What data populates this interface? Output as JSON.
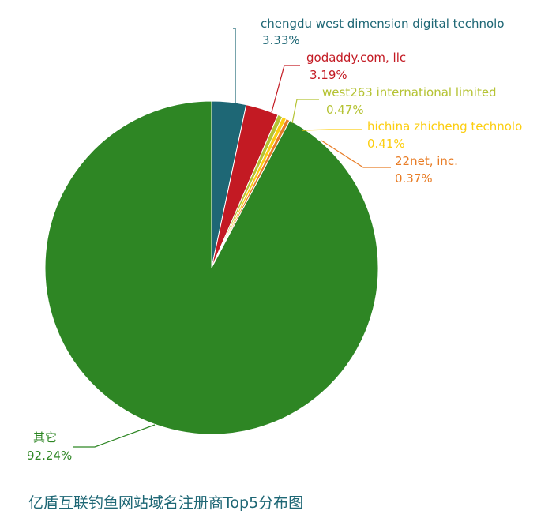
{
  "chart_data": {
    "type": "pie",
    "title": "亿盾互联钓鱼网站域名注册商Top5分布图",
    "categories": [
      "chengdu west dimension digital technolo",
      "godaddy.com, llc",
      "west263 international limited",
      "hichina zhicheng technolo",
      "22net, inc.",
      "其它"
    ],
    "values": [
      3.33,
      3.19,
      0.47,
      0.41,
      0.37,
      92.24
    ],
    "labels": [
      "3.33%",
      "3.19%",
      "0.47%",
      "0.41%",
      "0.37%",
      "92.24%"
    ],
    "colors": [
      "#1e6775",
      "#c31a23",
      "#b5c334",
      "#fcce10",
      "#e87c25",
      "#2e8624"
    ],
    "legend": "none"
  }
}
